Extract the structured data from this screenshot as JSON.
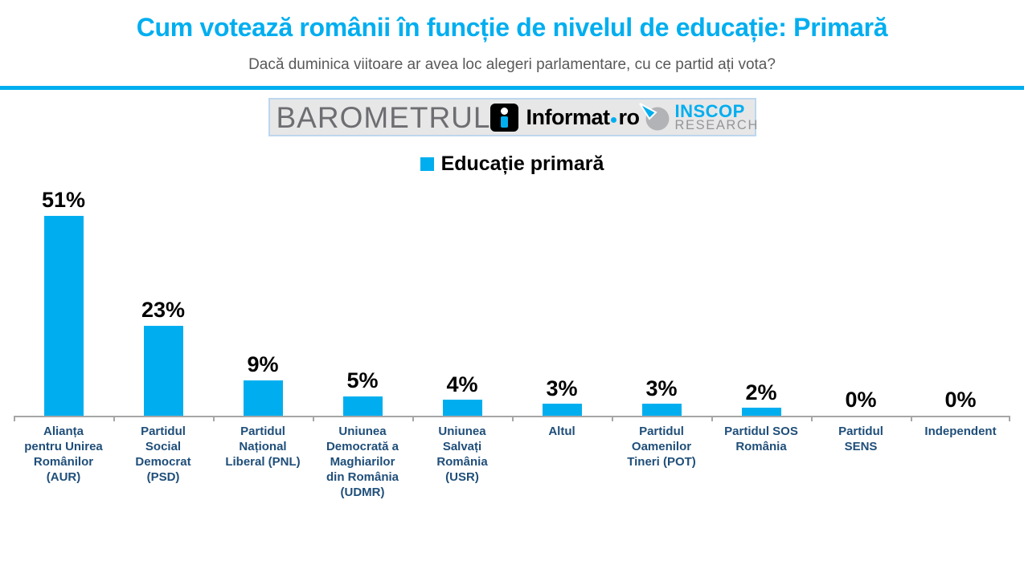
{
  "header": {
    "title": "Cum votează românii în funcție de nivelul de educație: Primară",
    "subtitle": "Dacă duminica viitoare ar avea loc alegeri parlamentare, cu ce partid ați vota?"
  },
  "logos": {
    "barometrul": "BAROMETRUL",
    "informat_name": "Informat",
    "informat_tld": "ro",
    "inscop_line1": "INSCOP",
    "inscop_line2": "RESEARCH"
  },
  "chart_data": {
    "type": "bar",
    "title": "Educație primară",
    "legend": "Educație primară",
    "legend_position": "top-center",
    "categories": [
      "Alianța pentru Unirea Românilor (AUR)",
      "Partidul Social Democrat (PSD)",
      "Partidul Național Liberal (PNL)",
      "Uniunea Democrată a Maghiarilor din România (UDMR)",
      "Uniunea Salvați România (USR)",
      "Altul",
      "Partidul Oamenilor Tineri (POT)",
      "Partidul SOS România",
      "Partidul SENS",
      "Independent"
    ],
    "category_display": [
      "Alianța\npentru Unirea\nRomânilor\n(AUR)",
      "Partidul\nSocial\nDemocrat\n(PSD)",
      "Partidul\nNațional\nLiberal (PNL)",
      "Uniunea\nDemocrată a\nMaghiarilor\ndin România\n(UDMR)",
      "Uniunea\nSalvați\nRomânia\n(USR)",
      "Altul",
      "Partidul\nOamenilor\nTineri (POT)",
      "Partidul SOS\nRomânia",
      "Partidul\nSENS",
      "Independent"
    ],
    "values": [
      51,
      23,
      9,
      5,
      4,
      3,
      3,
      2,
      0,
      0
    ],
    "value_labels": [
      "51%",
      "23%",
      "9%",
      "5%",
      "4%",
      "3%",
      "3%",
      "2%",
      "0%",
      "0%"
    ],
    "unit": "%",
    "ylim": [
      0,
      60
    ],
    "grid": false,
    "xlabel": "",
    "ylabel": ""
  },
  "colors": {
    "accent_blue": "#00AEEF",
    "bar_blue": "#00AEEF",
    "label_navy": "#1F4E79",
    "subtitle_gray": "#595959",
    "axis_gray": "#A6A6A6",
    "strip_bg": "#E7E7E8",
    "strip_border": "#BDD7EE",
    "barometrul_gray": "#6D6E71",
    "inscop_gray": "#939598",
    "inscop_circle_gray": "#B1B3B6"
  }
}
